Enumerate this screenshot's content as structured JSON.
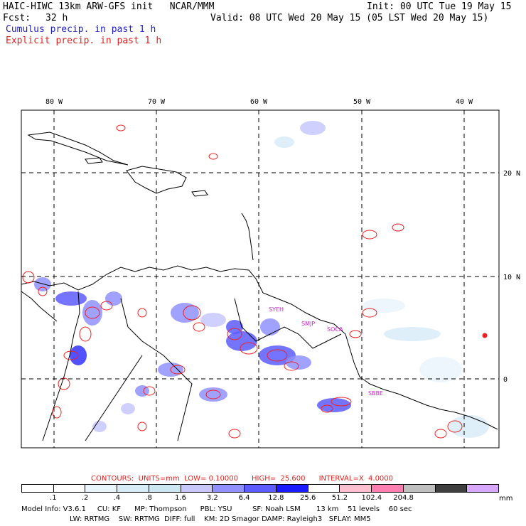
{
  "header": {
    "title": "HAIC-HIWC 13km ARW-GFS init   NCAR/MMM",
    "init": "Init: 00 UTC Tue 19 May 15",
    "fcst_label": "Fcst:",
    "fcst_value": "32 h",
    "valid": "Valid: 08 UTC Wed 20 May 15 (05 LST Wed 20 May 15)",
    "legend_cumulus": "Cumulus precip. in past 1 h",
    "legend_explicit": "Explicit precip. in past 1 h"
  },
  "map": {
    "lon_labels": [
      "80 W",
      "70 W",
      "60 W",
      "50 W",
      "40 W"
    ],
    "lat_labels": [
      "20 N",
      "10 N",
      "0"
    ],
    "station_labels": [
      "SYEH",
      "SMJP",
      "SOCA",
      "SBBE"
    ],
    "colors": {
      "cumulus": "#3333ff",
      "explicit": "#ee2222",
      "coast": "#000000",
      "grid": "#000000"
    }
  },
  "contours": {
    "text": "CONTOURS:  UNITS=mm  LOW= 0.10000      HIGH=  25.600      INTERVAL=X  4.0000"
  },
  "colorbar": {
    "colors": [
      "#ffffff",
      "#ffffff",
      "#eaf4fb",
      "#d8ecf8",
      "#cbe7f1",
      "#c8c8ff",
      "#9090ff",
      "#5c5cff",
      "#1a1aff",
      "#ffffff",
      "#ffbfd0",
      "#ff7fb0",
      "#bfbfbf",
      "#404040",
      "#d8a8ff"
    ],
    "tick_labels": [
      ".1",
      ".2",
      ".4",
      ".8",
      "1.6",
      "3.2",
      "6.4",
      "12.8",
      "25.6",
      "51.2",
      "102.4",
      "204.8"
    ],
    "units": "mm"
  },
  "footer": {
    "line1": "Model Info: V3.6.1     CU: KF      MP: Thompson      PBL: YSU         SF: Noah LSM       13 km    51 levels    60 sec",
    "line2": "LW: RRTMG    SW: RRTMG  DIFF: full    KM: 2D Smagor DAMP: Rayleigh3   SFLAY: MM5"
  }
}
